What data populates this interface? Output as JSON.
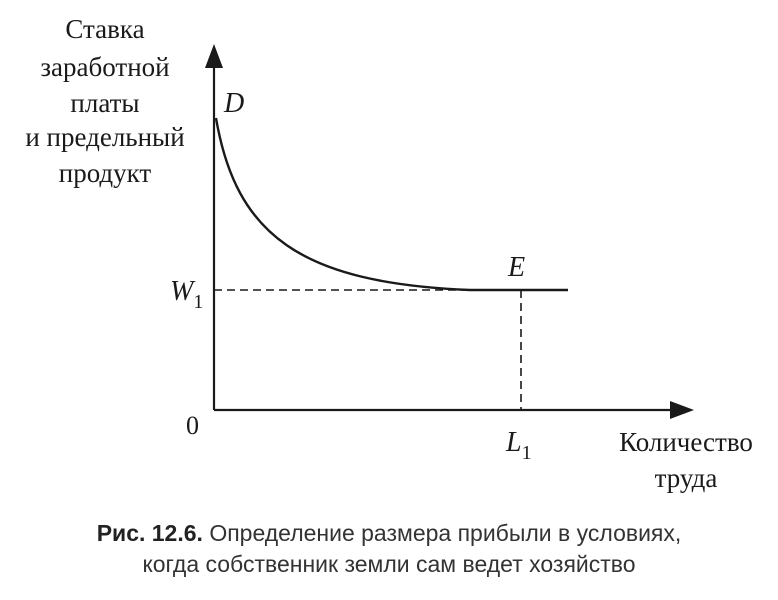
{
  "diagram": {
    "y_axis_label": [
      "Ставка",
      "заработной",
      "платы",
      "и предельный",
      "продукт"
    ],
    "x_axis_label": [
      "Количество",
      "труда"
    ],
    "origin_label": "0",
    "curve_label": "D",
    "point_label": "E",
    "wage_label": {
      "letter": "W",
      "subscript": "1"
    },
    "labor_label": {
      "letter": "L",
      "subscript": "1"
    }
  },
  "caption": {
    "number": "Рис. 12.6.",
    "text_line1": "Определение размера прибыли в условиях,",
    "text_line2": "когда собственник земли сам ведет хозяйство"
  },
  "colors": {
    "ink": "#1a1a1a",
    "caption": "#333333"
  }
}
